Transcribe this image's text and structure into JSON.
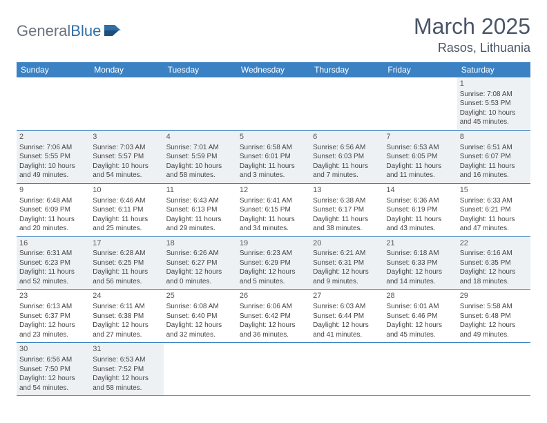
{
  "logo": {
    "text_gray": "General",
    "text_blue": "Blue"
  },
  "title": "March 2025",
  "location": "Rasos, Lithuania",
  "colors": {
    "header_bg": "#3b82c4",
    "header_text": "#ffffff",
    "shaded_bg": "#eef1f4",
    "border": "#3b82c4",
    "logo_gray": "#6b7280",
    "logo_blue": "#2f6fa7",
    "title_color": "#4a5568"
  },
  "weekdays": [
    "Sunday",
    "Monday",
    "Tuesday",
    "Wednesday",
    "Thursday",
    "Friday",
    "Saturday"
  ],
  "weeks": [
    [
      {
        "empty": true
      },
      {
        "empty": true
      },
      {
        "empty": true
      },
      {
        "empty": true
      },
      {
        "empty": true
      },
      {
        "empty": true
      },
      {
        "num": "1",
        "shaded": true,
        "sunrise": "Sunrise: 7:08 AM",
        "sunset": "Sunset: 5:53 PM",
        "daylight1": "Daylight: 10 hours",
        "daylight2": "and 45 minutes."
      }
    ],
    [
      {
        "num": "2",
        "shaded": true,
        "sunrise": "Sunrise: 7:06 AM",
        "sunset": "Sunset: 5:55 PM",
        "daylight1": "Daylight: 10 hours",
        "daylight2": "and 49 minutes."
      },
      {
        "num": "3",
        "shaded": true,
        "sunrise": "Sunrise: 7:03 AM",
        "sunset": "Sunset: 5:57 PM",
        "daylight1": "Daylight: 10 hours",
        "daylight2": "and 54 minutes."
      },
      {
        "num": "4",
        "shaded": true,
        "sunrise": "Sunrise: 7:01 AM",
        "sunset": "Sunset: 5:59 PM",
        "daylight1": "Daylight: 10 hours",
        "daylight2": "and 58 minutes."
      },
      {
        "num": "5",
        "shaded": true,
        "sunrise": "Sunrise: 6:58 AM",
        "sunset": "Sunset: 6:01 PM",
        "daylight1": "Daylight: 11 hours",
        "daylight2": "and 3 minutes."
      },
      {
        "num": "6",
        "shaded": true,
        "sunrise": "Sunrise: 6:56 AM",
        "sunset": "Sunset: 6:03 PM",
        "daylight1": "Daylight: 11 hours",
        "daylight2": "and 7 minutes."
      },
      {
        "num": "7",
        "shaded": true,
        "sunrise": "Sunrise: 6:53 AM",
        "sunset": "Sunset: 6:05 PM",
        "daylight1": "Daylight: 11 hours",
        "daylight2": "and 11 minutes."
      },
      {
        "num": "8",
        "shaded": true,
        "sunrise": "Sunrise: 6:51 AM",
        "sunset": "Sunset: 6:07 PM",
        "daylight1": "Daylight: 11 hours",
        "daylight2": "and 16 minutes."
      }
    ],
    [
      {
        "num": "9",
        "shaded": false,
        "sunrise": "Sunrise: 6:48 AM",
        "sunset": "Sunset: 6:09 PM",
        "daylight1": "Daylight: 11 hours",
        "daylight2": "and 20 minutes."
      },
      {
        "num": "10",
        "shaded": false,
        "sunrise": "Sunrise: 6:46 AM",
        "sunset": "Sunset: 6:11 PM",
        "daylight1": "Daylight: 11 hours",
        "daylight2": "and 25 minutes."
      },
      {
        "num": "11",
        "shaded": false,
        "sunrise": "Sunrise: 6:43 AM",
        "sunset": "Sunset: 6:13 PM",
        "daylight1": "Daylight: 11 hours",
        "daylight2": "and 29 minutes."
      },
      {
        "num": "12",
        "shaded": false,
        "sunrise": "Sunrise: 6:41 AM",
        "sunset": "Sunset: 6:15 PM",
        "daylight1": "Daylight: 11 hours",
        "daylight2": "and 34 minutes."
      },
      {
        "num": "13",
        "shaded": false,
        "sunrise": "Sunrise: 6:38 AM",
        "sunset": "Sunset: 6:17 PM",
        "daylight1": "Daylight: 11 hours",
        "daylight2": "and 38 minutes."
      },
      {
        "num": "14",
        "shaded": false,
        "sunrise": "Sunrise: 6:36 AM",
        "sunset": "Sunset: 6:19 PM",
        "daylight1": "Daylight: 11 hours",
        "daylight2": "and 43 minutes."
      },
      {
        "num": "15",
        "shaded": false,
        "sunrise": "Sunrise: 6:33 AM",
        "sunset": "Sunset: 6:21 PM",
        "daylight1": "Daylight: 11 hours",
        "daylight2": "and 47 minutes."
      }
    ],
    [
      {
        "num": "16",
        "shaded": true,
        "sunrise": "Sunrise: 6:31 AM",
        "sunset": "Sunset: 6:23 PM",
        "daylight1": "Daylight: 11 hours",
        "daylight2": "and 52 minutes."
      },
      {
        "num": "17",
        "shaded": true,
        "sunrise": "Sunrise: 6:28 AM",
        "sunset": "Sunset: 6:25 PM",
        "daylight1": "Daylight: 11 hours",
        "daylight2": "and 56 minutes."
      },
      {
        "num": "18",
        "shaded": true,
        "sunrise": "Sunrise: 6:26 AM",
        "sunset": "Sunset: 6:27 PM",
        "daylight1": "Daylight: 12 hours",
        "daylight2": "and 0 minutes."
      },
      {
        "num": "19",
        "shaded": true,
        "sunrise": "Sunrise: 6:23 AM",
        "sunset": "Sunset: 6:29 PM",
        "daylight1": "Daylight: 12 hours",
        "daylight2": "and 5 minutes."
      },
      {
        "num": "20",
        "shaded": true,
        "sunrise": "Sunrise: 6:21 AM",
        "sunset": "Sunset: 6:31 PM",
        "daylight1": "Daylight: 12 hours",
        "daylight2": "and 9 minutes."
      },
      {
        "num": "21",
        "shaded": true,
        "sunrise": "Sunrise: 6:18 AM",
        "sunset": "Sunset: 6:33 PM",
        "daylight1": "Daylight: 12 hours",
        "daylight2": "and 14 minutes."
      },
      {
        "num": "22",
        "shaded": true,
        "sunrise": "Sunrise: 6:16 AM",
        "sunset": "Sunset: 6:35 PM",
        "daylight1": "Daylight: 12 hours",
        "daylight2": "and 18 minutes."
      }
    ],
    [
      {
        "num": "23",
        "shaded": false,
        "sunrise": "Sunrise: 6:13 AM",
        "sunset": "Sunset: 6:37 PM",
        "daylight1": "Daylight: 12 hours",
        "daylight2": "and 23 minutes."
      },
      {
        "num": "24",
        "shaded": false,
        "sunrise": "Sunrise: 6:11 AM",
        "sunset": "Sunset: 6:38 PM",
        "daylight1": "Daylight: 12 hours",
        "daylight2": "and 27 minutes."
      },
      {
        "num": "25",
        "shaded": false,
        "sunrise": "Sunrise: 6:08 AM",
        "sunset": "Sunset: 6:40 PM",
        "daylight1": "Daylight: 12 hours",
        "daylight2": "and 32 minutes."
      },
      {
        "num": "26",
        "shaded": false,
        "sunrise": "Sunrise: 6:06 AM",
        "sunset": "Sunset: 6:42 PM",
        "daylight1": "Daylight: 12 hours",
        "daylight2": "and 36 minutes."
      },
      {
        "num": "27",
        "shaded": false,
        "sunrise": "Sunrise: 6:03 AM",
        "sunset": "Sunset: 6:44 PM",
        "daylight1": "Daylight: 12 hours",
        "daylight2": "and 41 minutes."
      },
      {
        "num": "28",
        "shaded": false,
        "sunrise": "Sunrise: 6:01 AM",
        "sunset": "Sunset: 6:46 PM",
        "daylight1": "Daylight: 12 hours",
        "daylight2": "and 45 minutes."
      },
      {
        "num": "29",
        "shaded": false,
        "sunrise": "Sunrise: 5:58 AM",
        "sunset": "Sunset: 6:48 PM",
        "daylight1": "Daylight: 12 hours",
        "daylight2": "and 49 minutes."
      }
    ],
    [
      {
        "num": "30",
        "shaded": true,
        "sunrise": "Sunrise: 6:56 AM",
        "sunset": "Sunset: 7:50 PM",
        "daylight1": "Daylight: 12 hours",
        "daylight2": "and 54 minutes."
      },
      {
        "num": "31",
        "shaded": true,
        "sunrise": "Sunrise: 6:53 AM",
        "sunset": "Sunset: 7:52 PM",
        "daylight1": "Daylight: 12 hours",
        "daylight2": "and 58 minutes."
      },
      {
        "empty": true
      },
      {
        "empty": true
      },
      {
        "empty": true
      },
      {
        "empty": true
      },
      {
        "empty": true
      }
    ]
  ]
}
